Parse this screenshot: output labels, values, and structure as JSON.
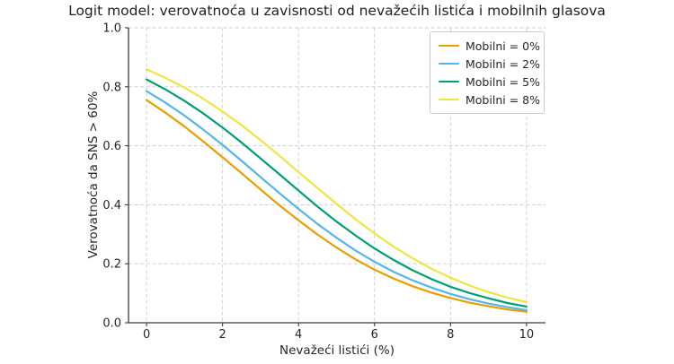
{
  "chart_data": {
    "type": "line",
    "title": "Logit model: verovatnoća u zavisnosti od nevažećih listića i mobilnih glasova",
    "xlabel": "Nevažeći listići (%)",
    "ylabel": "Verovatnoća da SNS > 60%",
    "xlim": [
      -0.475,
      10.5
    ],
    "ylim": [
      0,
      1
    ],
    "xticks": [
      0,
      2,
      4,
      6,
      8,
      10
    ],
    "yticks": [
      0,
      0.2,
      0.4,
      0.6,
      0.8,
      1.0
    ],
    "xtick_labels": [
      "0",
      "2",
      "4",
      "6",
      "8",
      "10"
    ],
    "ytick_labels": [
      "0.0",
      "0.2",
      "0.4",
      "0.6",
      "0.8",
      "1.0"
    ],
    "grid": true,
    "grid_style": "dashed",
    "legend_position": "top-right-inside",
    "x": [
      0,
      0.5,
      1,
      1.5,
      2,
      2.5,
      3,
      3.5,
      4,
      4.5,
      5,
      5.5,
      6,
      6.5,
      7,
      7.5,
      8,
      8.5,
      9,
      9.5,
      10
    ],
    "series": [
      {
        "name": "Mobilni = 0%",
        "color": "#E69F00",
        "values": [
          0.755,
          0.712,
          0.665,
          0.614,
          0.561,
          0.507,
          0.452,
          0.398,
          0.347,
          0.299,
          0.255,
          0.215,
          0.18,
          0.15,
          0.124,
          0.102,
          0.084,
          0.068,
          0.056,
          0.045,
          0.037
        ]
      },
      {
        "name": "Mobilni = 2%",
        "color": "#56B4E9",
        "values": [
          0.785,
          0.746,
          0.702,
          0.654,
          0.603,
          0.549,
          0.494,
          0.439,
          0.386,
          0.335,
          0.288,
          0.245,
          0.207,
          0.173,
          0.144,
          0.119,
          0.098,
          0.08,
          0.065,
          0.053,
          0.043
        ]
      },
      {
        "name": "Mobilni = 5%",
        "color": "#009E73",
        "values": [
          0.825,
          0.791,
          0.752,
          0.709,
          0.662,
          0.611,
          0.557,
          0.503,
          0.448,
          0.394,
          0.343,
          0.296,
          0.252,
          0.213,
          0.178,
          0.148,
          0.122,
          0.101,
          0.083,
          0.067,
          0.055
        ]
      },
      {
        "name": "Mobilni = 8%",
        "color": "#F0E442",
        "values": [
          0.859,
          0.83,
          0.797,
          0.759,
          0.716,
          0.67,
          0.619,
          0.566,
          0.511,
          0.457,
          0.403,
          0.351,
          0.303,
          0.258,
          0.219,
          0.183,
          0.153,
          0.126,
          0.104,
          0.085,
          0.07
        ]
      }
    ],
    "colors": {
      "text": "#262626",
      "spine": "#3a3a3a",
      "grid": "#cccccc",
      "background": "#ffffff"
    }
  }
}
